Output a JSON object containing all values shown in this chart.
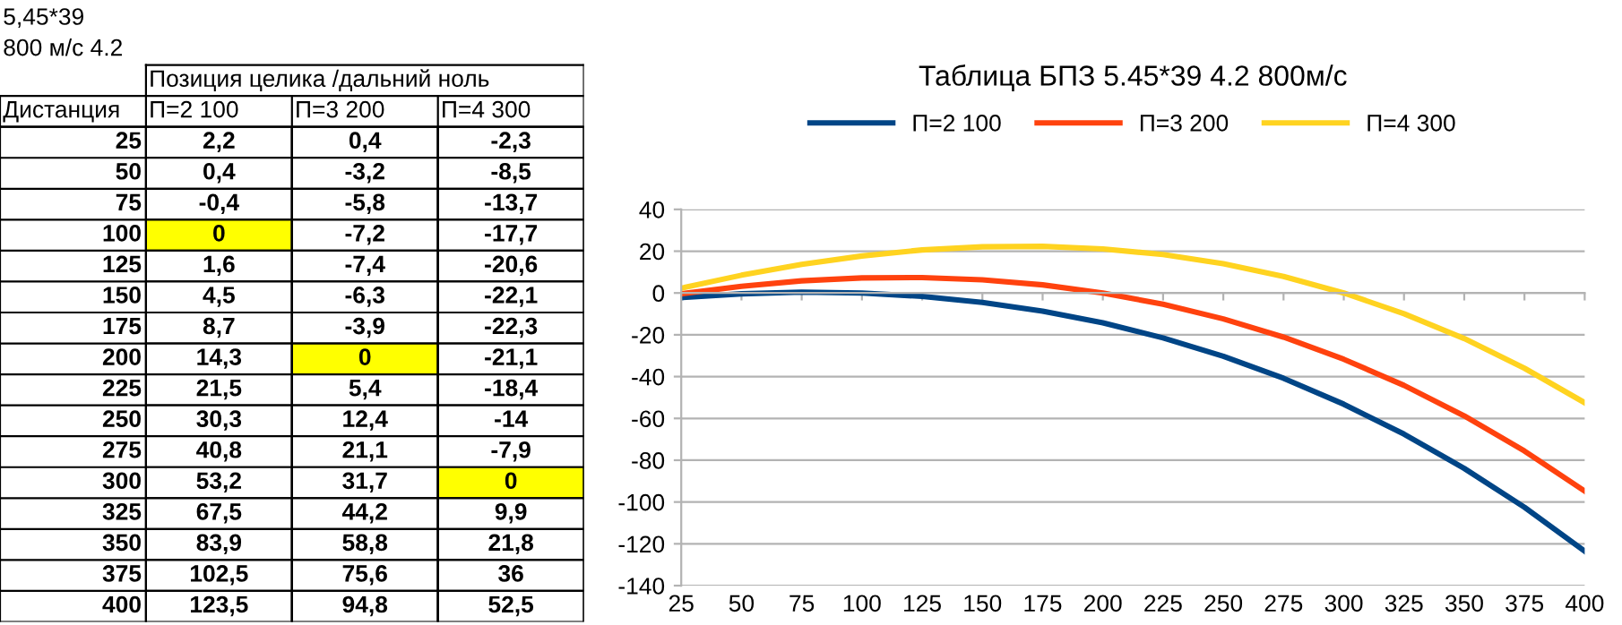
{
  "chart_data": [
    {
      "type": "heatmap",
      "title": "Позиция целика /дальний ноль",
      "ylabel": "Дистанция",
      "annotations": [
        "5,45*39",
        "800 м/с 4.2"
      ],
      "categories": [
        "П=2 100",
        "П=3 200",
        "П=4 300"
      ],
      "y_categories": [
        "25",
        "50",
        "75",
        "100",
        "125",
        "150",
        "175",
        "200",
        "225",
        "250",
        "275",
        "300",
        "325",
        "350",
        "375",
        "400"
      ],
      "cells": [
        [
          2.2,
          0.4,
          -2.3
        ],
        [
          0.4,
          -3.2,
          -8.5
        ],
        [
          -0.4,
          -5.8,
          -13.7
        ],
        [
          0,
          -7.2,
          -17.7
        ],
        [
          1.6,
          -7.4,
          -20.6
        ],
        [
          4.5,
          -6.3,
          -22.1
        ],
        [
          8.7,
          -3.9,
          -22.3
        ],
        [
          14.3,
          0,
          -21.1
        ],
        [
          21.5,
          5.4,
          -18.4
        ],
        [
          30.3,
          12.4,
          -14
        ],
        [
          40.8,
          21.1,
          -7.9
        ],
        [
          53.2,
          31.7,
          0
        ],
        [
          67.5,
          44.2,
          9.9
        ],
        [
          83.9,
          58.8,
          21.8
        ],
        [
          102.5,
          75.6,
          36
        ],
        [
          123.5,
          94.8,
          52.5
        ]
      ],
      "cell_labels": [
        [
          "2,2",
          "0,4",
          "-2,3"
        ],
        [
          "0,4",
          "-3,2",
          "-8,5"
        ],
        [
          "-0,4",
          "-5,8",
          "-13,7"
        ],
        [
          "0",
          "-7,2",
          "-17,7"
        ],
        [
          "1,6",
          "-7,4",
          "-20,6"
        ],
        [
          "4,5",
          "-6,3",
          "-22,1"
        ],
        [
          "8,7",
          "-3,9",
          "-22,3"
        ],
        [
          "14,3",
          "0",
          "-21,1"
        ],
        [
          "21,5",
          "5,4",
          "-18,4"
        ],
        [
          "30,3",
          "12,4",
          "-14"
        ],
        [
          "40,8",
          "21,1",
          "-7,9"
        ],
        [
          "53,2",
          "31,7",
          "0"
        ],
        [
          "67,5",
          "44,2",
          "9,9"
        ],
        [
          "83,9",
          "58,8",
          "21,8"
        ],
        [
          "102,5",
          "75,6",
          "36"
        ],
        [
          "123,5",
          "94,8",
          "52,5"
        ]
      ]
    },
    {
      "type": "line",
      "title": "Таблица БПЗ 5.45*39 4.2 800м/с",
      "categories": [
        "25",
        "50",
        "75",
        "100",
        "125",
        "150",
        "175",
        "200",
        "225",
        "250",
        "275",
        "300",
        "325",
        "350",
        "375",
        "400"
      ],
      "series": [
        {
          "name": "П=2 100",
          "color": "#004586",
          "values": [
            -2.2,
            -0.4,
            0.4,
            0,
            -1.6,
            -4.5,
            -8.7,
            -14.3,
            -21.5,
            -30.3,
            -40.8,
            -53.2,
            -67.5,
            -83.9,
            -102.5,
            -123.5
          ]
        },
        {
          "name": "П=3 200",
          "color": "#ff420e",
          "values": [
            -0.4,
            3.2,
            5.8,
            7.2,
            7.4,
            6.3,
            3.9,
            0,
            -5.4,
            -12.4,
            -21.1,
            -31.7,
            -44.2,
            -58.8,
            -75.6,
            -94.8
          ]
        },
        {
          "name": "П=4 300",
          "color": "#ffd320",
          "values": [
            2.3,
            8.5,
            13.7,
            17.7,
            20.6,
            22.1,
            22.3,
            21.1,
            18.4,
            14,
            7.9,
            0,
            -9.9,
            -21.8,
            -36,
            -52.5
          ]
        }
      ],
      "ylim": [
        -140,
        40
      ],
      "yticks": [
        -140,
        -120,
        -100,
        -80,
        -60,
        -40,
        -20,
        0,
        20,
        40
      ],
      "grid": "y",
      "legend": "top"
    }
  ]
}
